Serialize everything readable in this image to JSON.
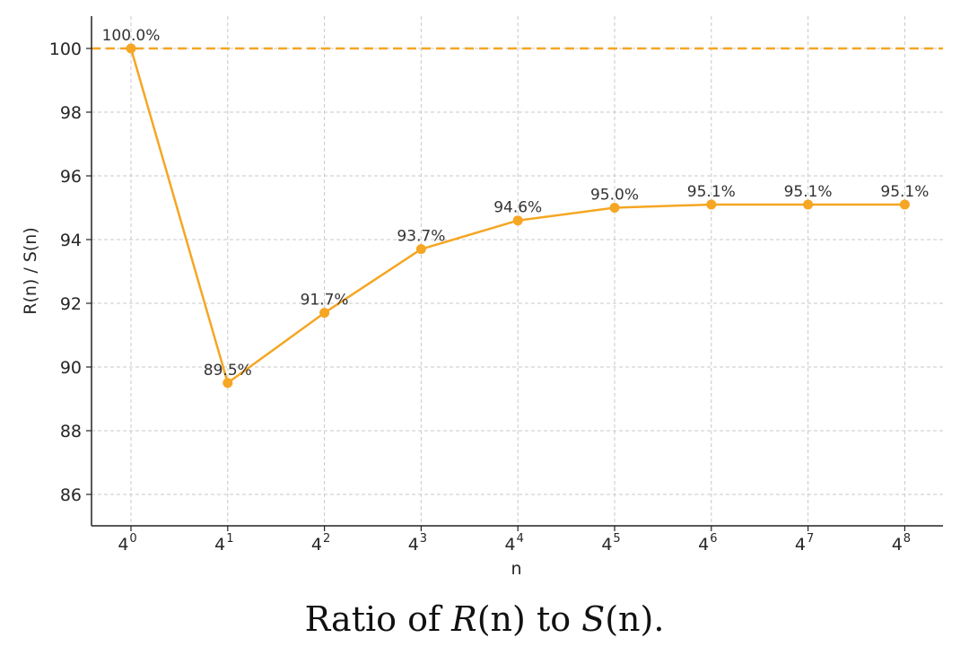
{
  "chart_data": {
    "type": "line",
    "x_base": "4",
    "x_exponents": [
      "0",
      "1",
      "2",
      "3",
      "4",
      "5",
      "6",
      "7",
      "8"
    ],
    "values": [
      100.0,
      89.5,
      91.7,
      93.7,
      94.6,
      95.0,
      95.1,
      95.1,
      95.1
    ],
    "data_labels": [
      "100.0%",
      "89.5%",
      "91.7%",
      "93.7%",
      "94.6%",
      "95.0%",
      "95.1%",
      "95.1%",
      "95.1%"
    ],
    "xlabel": "n",
    "ylabel": "R(n) / S(n)",
    "ylim": [
      85,
      101
    ],
    "yticks": [
      86,
      88,
      90,
      92,
      94,
      96,
      98,
      100
    ],
    "reference_line": 100,
    "grid": true,
    "line_color": "#f5a623",
    "grid_color": "#c8c8c8",
    "axis_color": "#222222"
  },
  "caption": {
    "prefix": "Ratio of ",
    "r_symbol": "R",
    "r_args": "(n)",
    "middle": " to ",
    "s_symbol": "S",
    "s_args": "(n)",
    "suffix": "."
  }
}
